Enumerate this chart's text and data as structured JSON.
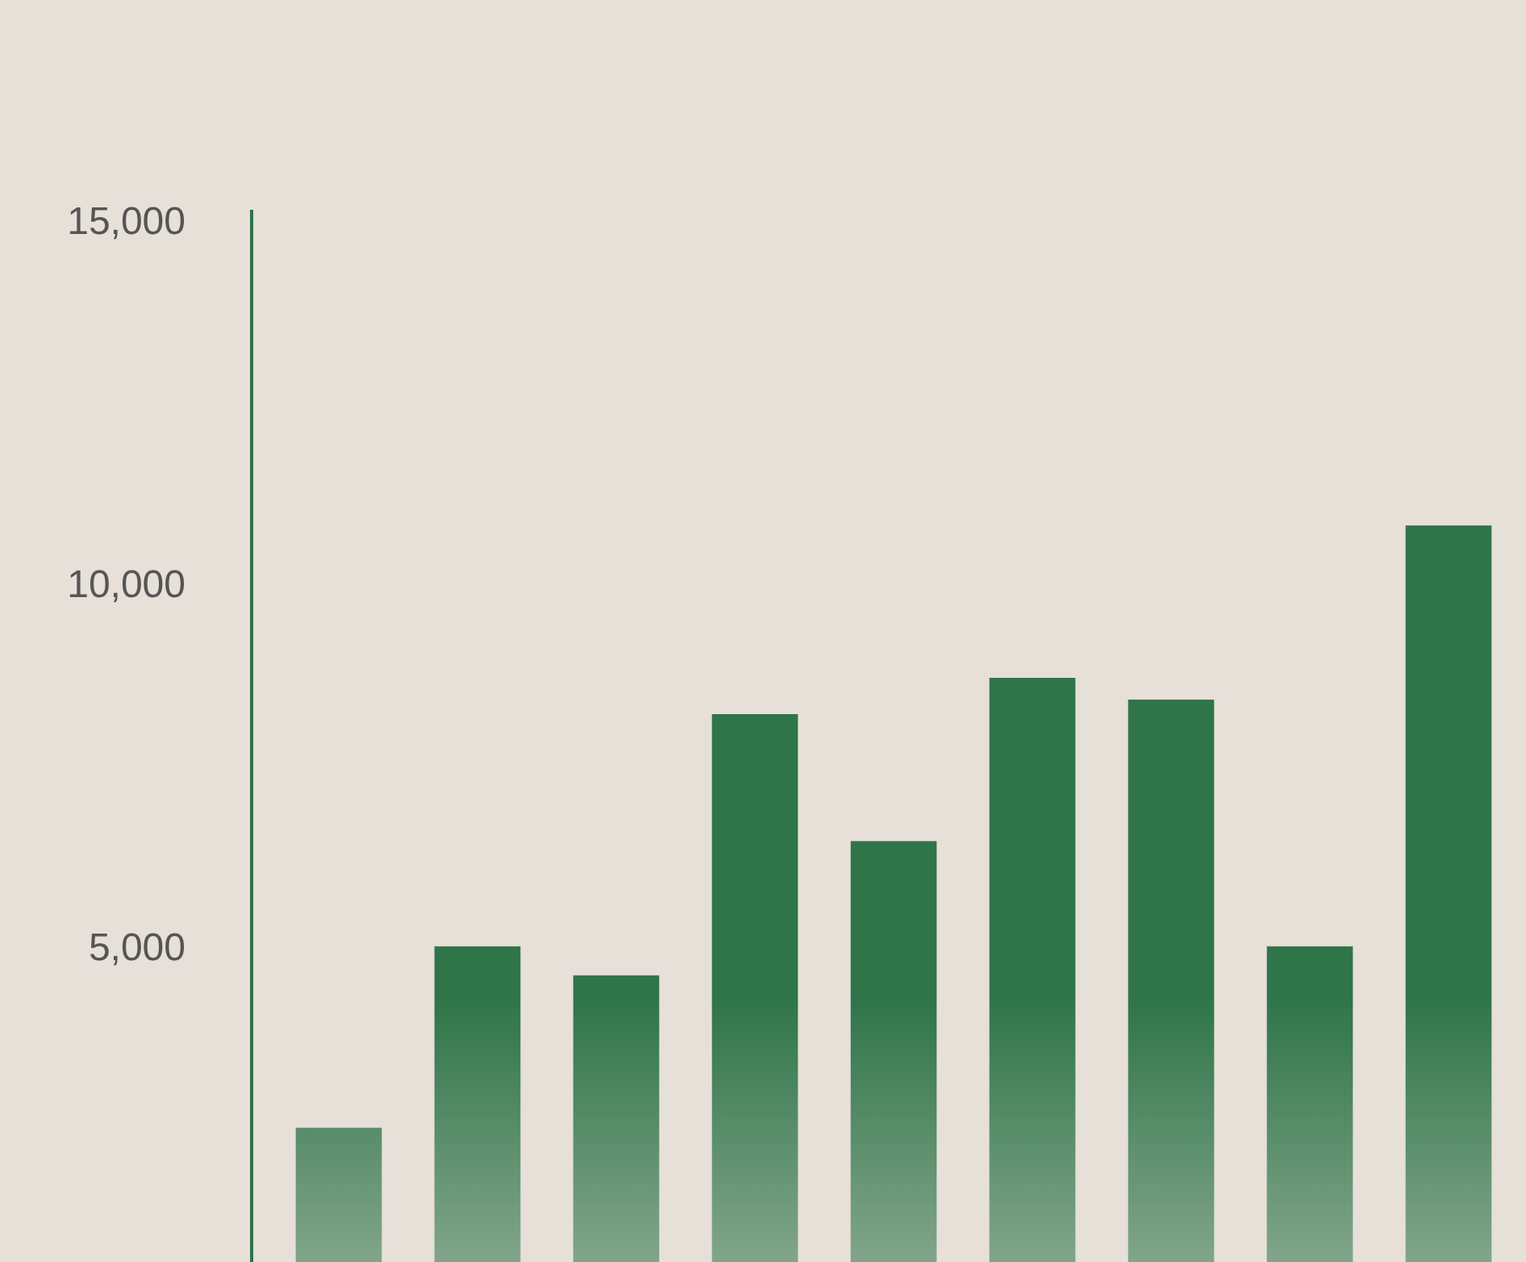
{
  "chart_data": {
    "type": "bar",
    "categories": [
      null,
      null,
      null,
      null,
      null,
      null,
      null,
      null,
      null
    ],
    "values": [
      2500,
      5000,
      4600,
      8200,
      6450,
      8700,
      8400,
      5000,
      10800
    ],
    "color": "#2f7549",
    "ylim": [
      650,
      15150
    ],
    "yticks": [
      {
        "value": 5000,
        "label": "5,000"
      },
      {
        "value": 10000,
        "label": "10,000"
      },
      {
        "value": 15000,
        "label": "15,000"
      }
    ],
    "grid": false
  }
}
